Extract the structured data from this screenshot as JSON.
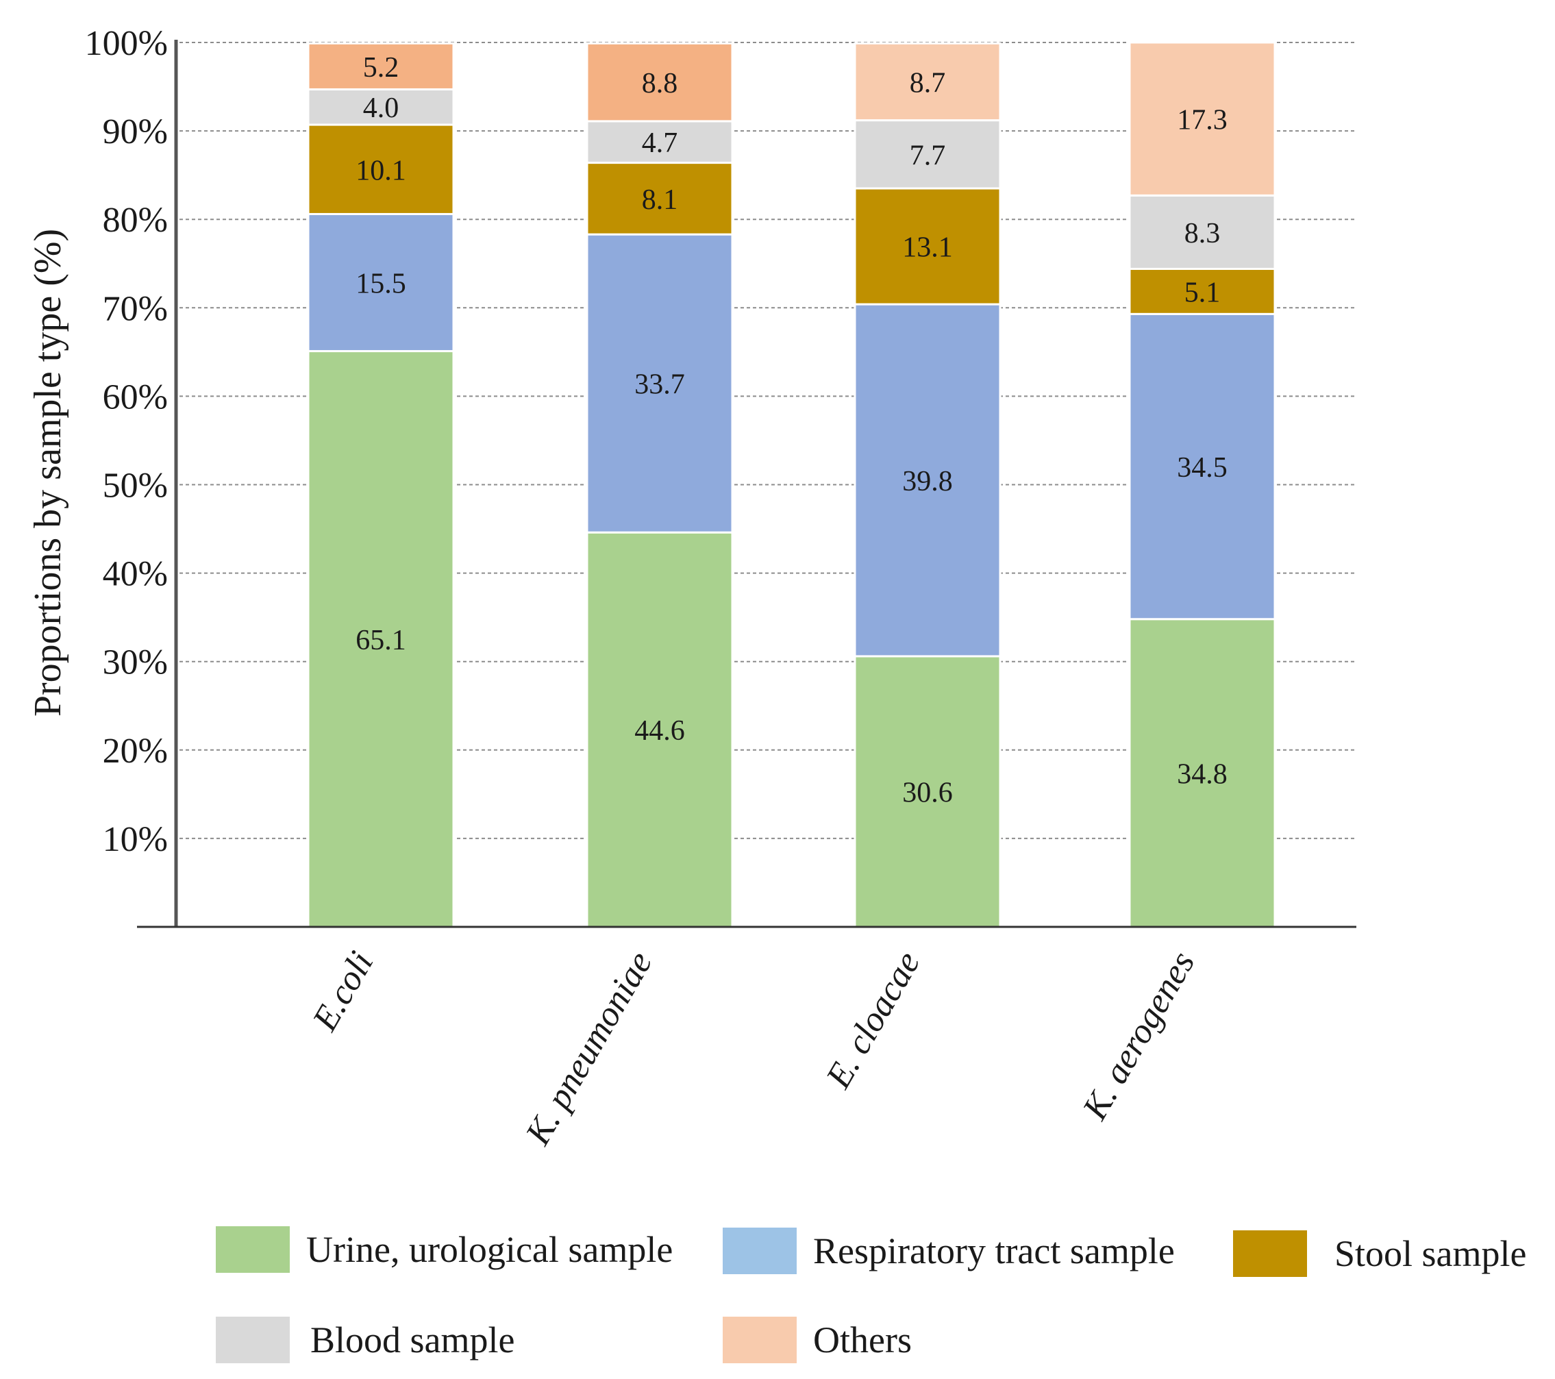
{
  "chart_data": {
    "type": "bar",
    "stacked": true,
    "ylabel": "Proportions by sample type (%)",
    "ylim": [
      0,
      100
    ],
    "yticks": [
      "10%",
      "20%",
      "30%",
      "40%",
      "50%",
      "60%",
      "70%",
      "80%",
      "90%",
      "100%"
    ],
    "grid": true,
    "legend_position": "bottom",
    "categories": [
      "E.coli",
      "K. pneumoniae",
      "E. cloacae",
      "K. aerogenes"
    ],
    "series": [
      {
        "name": "Urine, urological sample",
        "color": "#a9d18e",
        "values": [
          65.1,
          44.6,
          30.6,
          34.8
        ],
        "labels": [
          "65.1",
          "44.6",
          "30.6",
          "34.8"
        ]
      },
      {
        "name": "Respiratory tract sample",
        "color": "#8faadc",
        "values": [
          15.5,
          33.7,
          39.8,
          34.5
        ],
        "labels": [
          "15.5",
          "33.7",
          "39.8",
          "34.5"
        ]
      },
      {
        "name": "Stool sample",
        "color": "#bf9000",
        "values": [
          10.1,
          8.1,
          13.1,
          5.1
        ],
        "labels": [
          "10.1",
          "8.1",
          "13.1",
          "5.1"
        ]
      },
      {
        "name": "Blood sample",
        "color": "#d9d9d9",
        "values": [
          4.0,
          4.7,
          7.7,
          8.3
        ],
        "labels": [
          "4.0",
          "4.7",
          "7.7",
          "8.3"
        ]
      },
      {
        "name": "Others",
        "colors": [
          "#f4b183",
          "#f4b183",
          "#f8cbad",
          "#f8cbad"
        ],
        "color": "#f8cbad",
        "values": [
          5.2,
          8.8,
          8.7,
          17.3
        ],
        "labels": [
          "5.2",
          "8.8",
          "8.7",
          "17.3"
        ]
      }
    ],
    "legend": [
      {
        "label": "Urine, urological sample",
        "color": "#a9d18e"
      },
      {
        "label": "Respiratory tract sample",
        "color": "#9dc3e6"
      },
      {
        "label": "Stool sample",
        "color": "#bf9000"
      },
      {
        "label": "Blood sample",
        "color": "#d9d9d9"
      },
      {
        "label": "Others",
        "color": "#f8cbad"
      }
    ]
  }
}
